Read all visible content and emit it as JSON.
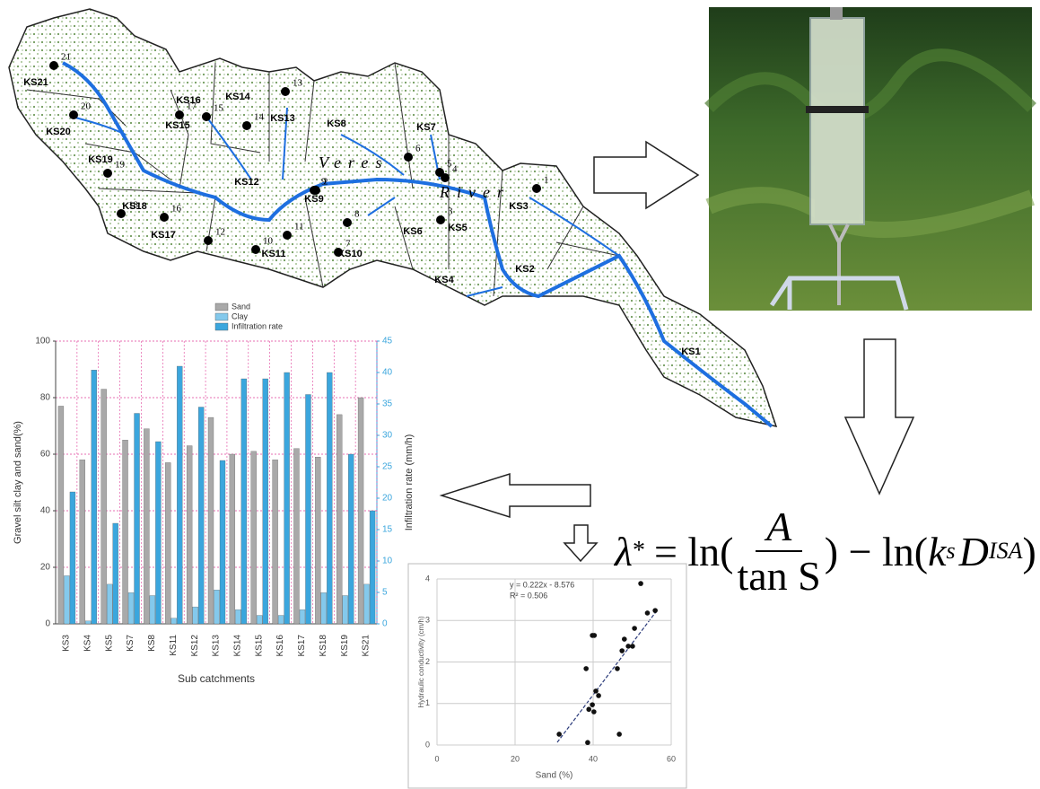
{
  "map": {
    "subcatchments": [
      "KS1",
      "KS2",
      "KS3",
      "KS4",
      "KS5",
      "KS6",
      "KS7",
      "KS8",
      "KS9",
      "KS10",
      "KS11",
      "KS12",
      "KS13",
      "KS14",
      "KS15",
      "KS16",
      "KS17",
      "KS18",
      "KS19",
      "KS20",
      "KS21"
    ],
    "points": [
      "1",
      "2",
      "3",
      "4",
      "5",
      "6",
      "7",
      "8",
      "9",
      "10",
      "11",
      "12",
      "13",
      "14",
      "15",
      "16",
      "17",
      "18",
      "19",
      "20",
      "21"
    ],
    "river": [
      "Veres",
      "River"
    ]
  },
  "formula": {
    "lambda": "λ",
    "star": "*",
    "eq": "= ln(",
    "num": "A",
    "den": "tan S",
    "mid": ") − ln(",
    "k": "k",
    "s": "s",
    "D": "D",
    "isa": "ISA",
    "close": ")"
  },
  "chart_data": [
    {
      "type": "bar",
      "categories": [
        "KS3",
        "KS4",
        "KS5",
        "KS7",
        "KS8",
        "KS11",
        "KS12",
        "KS13",
        "KS14",
        "KS15",
        "KS16",
        "KS17",
        "KS18",
        "KS19",
        "KS21"
      ],
      "series": [
        {
          "name": "Sand",
          "color": "#a9a9a9",
          "values": [
            77,
            58,
            83,
            65,
            69,
            57,
            63,
            73,
            60,
            61,
            58,
            62,
            59,
            74,
            80
          ]
        },
        {
          "name": "Clay",
          "color": "#84c9ec",
          "values": [
            17,
            1,
            14,
            11,
            10,
            2,
            6,
            12,
            5,
            3,
            3,
            5,
            11,
            10,
            14
          ]
        },
        {
          "name": "Infiltration rate",
          "color": "#3ba6dd",
          "axis": "y2",
          "values": [
            21,
            40.4,
            16,
            33.5,
            29,
            41,
            34.5,
            26,
            39,
            39,
            40,
            36.5,
            40,
            27,
            18
          ]
        }
      ],
      "ylim": [
        0,
        100
      ],
      "yticks": [
        0,
        20,
        40,
        60,
        80,
        100
      ],
      "y2lim": [
        0,
        45
      ],
      "y2ticks": [
        0,
        5,
        10,
        15,
        20,
        25,
        30,
        35,
        40,
        45
      ],
      "xlabel": "Sub catchments",
      "ylabel": "Gravel silt clay and sand(%)",
      "y2label": "Infiltration rate (mm/h)",
      "grid": true
    },
    {
      "type": "scatter",
      "x": [
        31.3,
        38.6,
        38.2,
        39.8,
        40.3,
        38.9,
        39.8,
        40.7,
        41.4,
        40.2,
        46.2,
        46.7,
        47.4,
        48,
        49,
        50.1,
        50.6,
        52.2,
        53.9,
        55.9
      ],
      "values": [
        0.26,
        0.06,
        1.84,
        2.64,
        2.64,
        0.86,
        0.97,
        1.3,
        1.19,
        0.8,
        1.84,
        0.26,
        2.27,
        2.55,
        2.38,
        2.38,
        2.81,
        3.89,
        3.18,
        3.24
      ],
      "color": "#111111",
      "xlim": [
        0,
        60
      ],
      "xticks": [
        0,
        20,
        40,
        60
      ],
      "ylim": [
        0,
        4
      ],
      "yticks": [
        0,
        1,
        2,
        3,
        4
      ],
      "xlabel": "Sand (%)",
      "ylabel": "Hydraulic conductivity (cm/h)",
      "annotations": [
        "y = 0.222x - 8.576",
        "R² = 0.506"
      ],
      "grid": true
    }
  ]
}
